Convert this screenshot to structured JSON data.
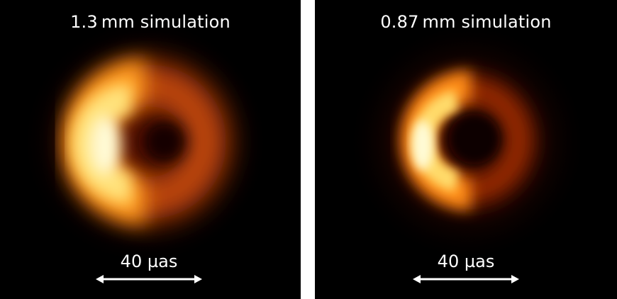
{
  "panels": [
    {
      "title": "1.3 mm simulation",
      "scale_label": "40 µas"
    },
    {
      "title": "0.87 mm simulation",
      "scale_label": "40 µas"
    }
  ],
  "colors": {
    "background": "#000000",
    "separator": "#ffffff",
    "ring_bright": "#fffbd0",
    "ring_mid": "#ff9a14",
    "ring_outer": "#a82a02",
    "text": "#ffffff"
  }
}
